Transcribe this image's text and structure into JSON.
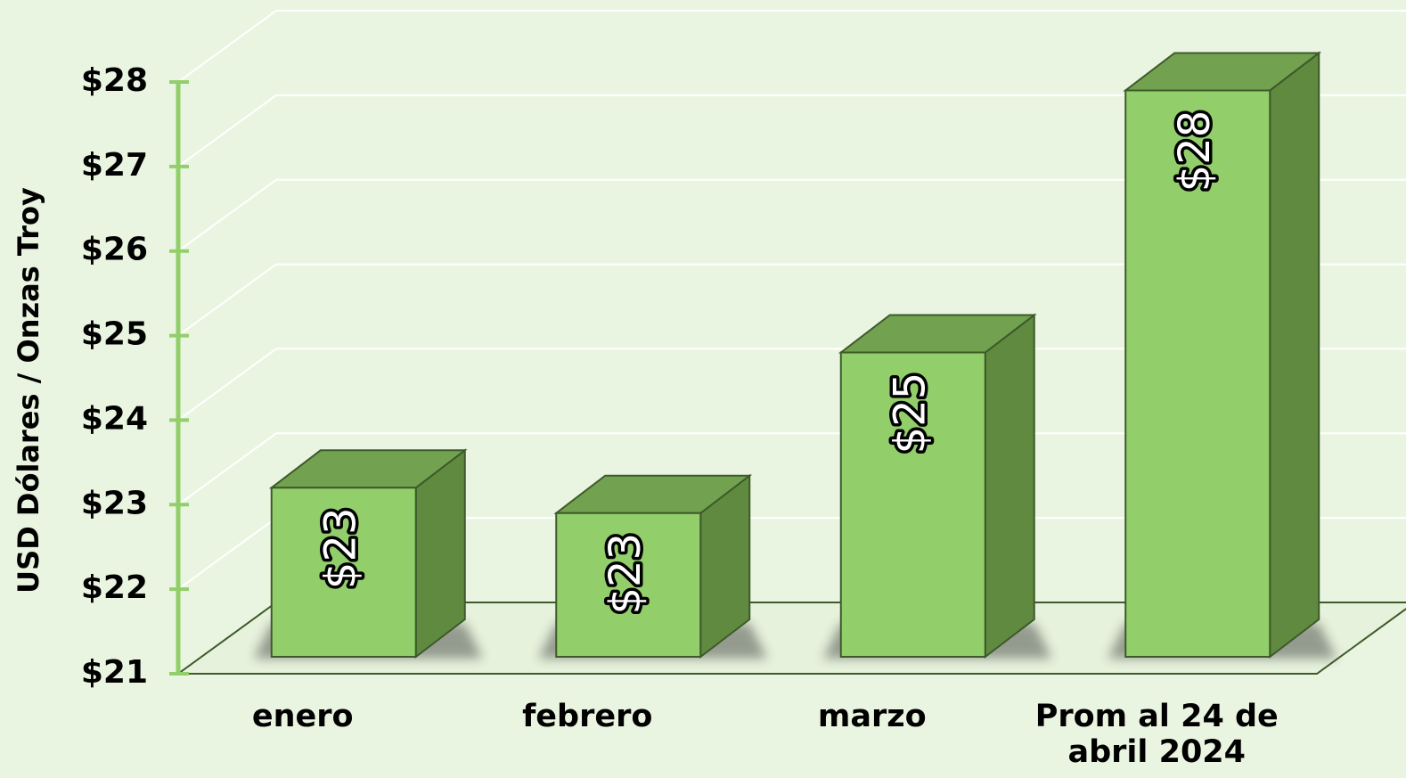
{
  "chart_data": {
    "type": "bar3d",
    "y_label": "USD Dólares / Onzas Troy",
    "categories": [
      "enero",
      "febrero",
      "marzo",
      "Prom al 24 de abril 2024"
    ],
    "values": [
      23.0,
      22.7,
      24.6,
      27.7
    ],
    "value_labels": [
      "$23",
      "$23",
      "$25",
      "$28"
    ],
    "color": "#92cf6b",
    "ylim": [
      21,
      28
    ],
    "yticks": [
      {
        "value": 21,
        "label": "$21"
      },
      {
        "value": 22,
        "label": "$22"
      },
      {
        "value": 23,
        "label": "$23"
      },
      {
        "value": 24,
        "label": "$24"
      },
      {
        "value": 25,
        "label": "$25"
      },
      {
        "value": 26,
        "label": "$26"
      },
      {
        "value": 27,
        "label": "$27"
      },
      {
        "value": 28,
        "label": "$28"
      }
    ],
    "grid": true
  }
}
